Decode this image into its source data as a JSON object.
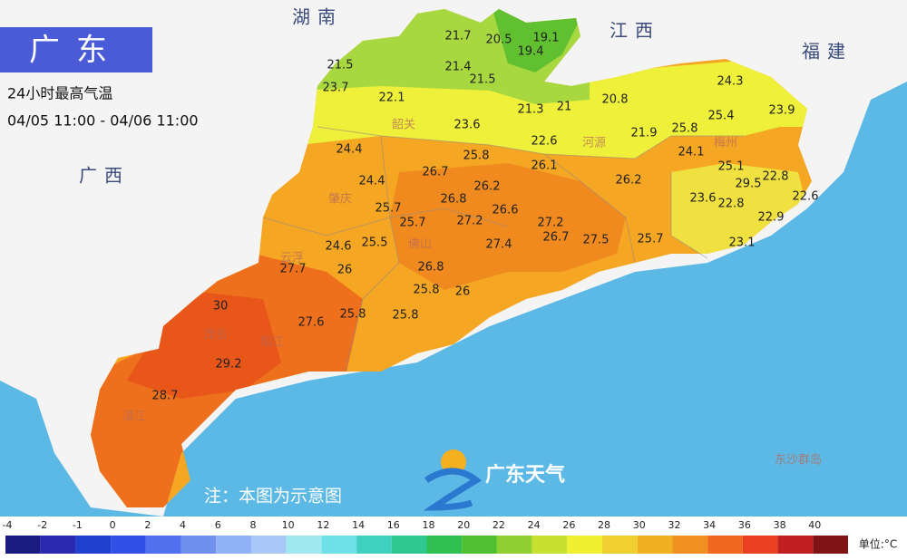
{
  "header": {
    "title": "广东",
    "subtitle": "24小时最高气温",
    "period": "04/05 11:00 - 04/06 11:00"
  },
  "neighbors": [
    "湖南",
    "江西",
    "福建",
    "广西"
  ],
  "cities": [
    "韶关",
    "河源",
    "梅州",
    "肇庆",
    "云浮",
    "佛山",
    "茂名",
    "阳江",
    "湛江",
    "东沙群岛"
  ],
  "stations": [
    21.7,
    20.5,
    19.1,
    19.4,
    21.5,
    21.4,
    21.5,
    23.7,
    22.1,
    20.8,
    21.3,
    21,
    24.3,
    23.9,
    25.4,
    25.8,
    23.6,
    22.6,
    21.9,
    24.4,
    24.1,
    25.8,
    26.1,
    25.1,
    22.8,
    26.7,
    24.4,
    29.5,
    26.2,
    26.2,
    26.8,
    23.6,
    22.8,
    22.6,
    25.7,
    25.7,
    27.2,
    26.6,
    27.2,
    26.7,
    27.5,
    22.9,
    24.6,
    25.5,
    27.4,
    25.7,
    23.1,
    27.7,
    26,
    26.8,
    25.8,
    26,
    25.8,
    25.8,
    27.6,
    30,
    29.2,
    28.7
  ],
  "note": "注：本图为示意图",
  "brand": "广东天气",
  "legend": {
    "ticks": [
      -4,
      -2,
      -1,
      0,
      2,
      4,
      6,
      8,
      10,
      12,
      14,
      16,
      18,
      20,
      22,
      24,
      26,
      28,
      30,
      32,
      34,
      36,
      38,
      40
    ],
    "colors": [
      "#1a1a80",
      "#2a2ab0",
      "#2040d0",
      "#3050e8",
      "#5070f0",
      "#7090f0",
      "#90b0f8",
      "#a8c8f8",
      "#a0e8f0",
      "#70e0e8",
      "#40d0c0",
      "#30c890",
      "#30c050",
      "#50c030",
      "#90d030",
      "#c8e030",
      "#f0f030",
      "#f0d030",
      "#f0b020",
      "#f09020",
      "#f06820",
      "#e84020",
      "#c02020",
      "#801414"
    ],
    "unit": "单位:°C"
  }
}
